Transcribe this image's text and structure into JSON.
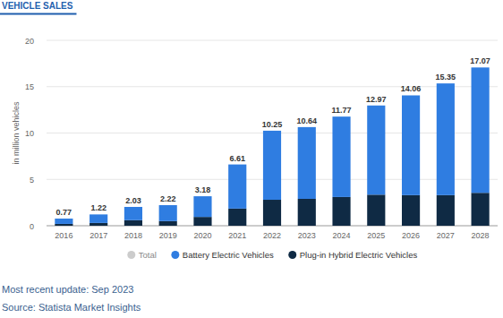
{
  "chart_data": {
    "type": "bar",
    "title": "VEHICLE SALES",
    "y_label": "in million vehicles",
    "categories": [
      "2016",
      "2017",
      "2018",
      "2019",
      "2020",
      "2021",
      "2022",
      "2023",
      "2024",
      "2025",
      "2026",
      "2027",
      "2028"
    ],
    "series": [
      {
        "name": "Total",
        "color": "#cccccc",
        "type": "text",
        "values": [
          0.77,
          1.22,
          2.03,
          2.22,
          3.18,
          6.61,
          10.25,
          10.64,
          11.77,
          12.97,
          14.06,
          15.35,
          17.07
        ]
      },
      {
        "name": "Battery Electric Vehicles",
        "color": "#2f7de1",
        "values": [
          0.57,
          0.92,
          1.43,
          1.72,
          2.23,
          4.76,
          7.45,
          7.74,
          8.67,
          9.62,
          10.76,
          12.05,
          13.52
        ]
      },
      {
        "name": "Plug-in Hybrid Electric Vehicles",
        "color": "#0f2a44",
        "values": [
          0.2,
          0.3,
          0.6,
          0.5,
          0.95,
          1.85,
          2.8,
          2.9,
          3.1,
          3.35,
          3.3,
          3.3,
          3.55
        ]
      }
    ],
    "stacked": true,
    "data_labels": true,
    "grid": true,
    "legend": "bottom",
    "ylim": [
      0,
      20
    ],
    "yticks": [
      0,
      5,
      10,
      15,
      20
    ],
    "annotations": [
      "Most recent update: Sep 2023",
      "Source: Statista Market Insights"
    ]
  }
}
